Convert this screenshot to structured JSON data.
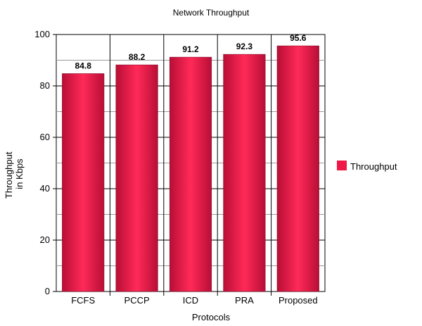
{
  "chart_data": {
    "type": "bar",
    "title": "Network Throughput",
    "xlabel": "Protocols",
    "ylabel_lines": [
      "Throughput",
      "in Kbps"
    ],
    "categories": [
      "FCFS",
      "PCCP",
      "ICD",
      "PRA",
      "Proposed"
    ],
    "series": [
      {
        "name": "Throughput",
        "values": [
          84.8,
          88.2,
          91.2,
          92.3,
          95.6
        ],
        "value_labels": [
          "84.8",
          "88.2",
          "91.2",
          "92.3",
          "95.6"
        ],
        "color": "#ee1748"
      }
    ],
    "ylim": [
      0,
      100
    ],
    "yticks": [
      "0",
      "20",
      "40",
      "60",
      "80",
      "100"
    ],
    "grid": true,
    "legend_position": "right"
  }
}
